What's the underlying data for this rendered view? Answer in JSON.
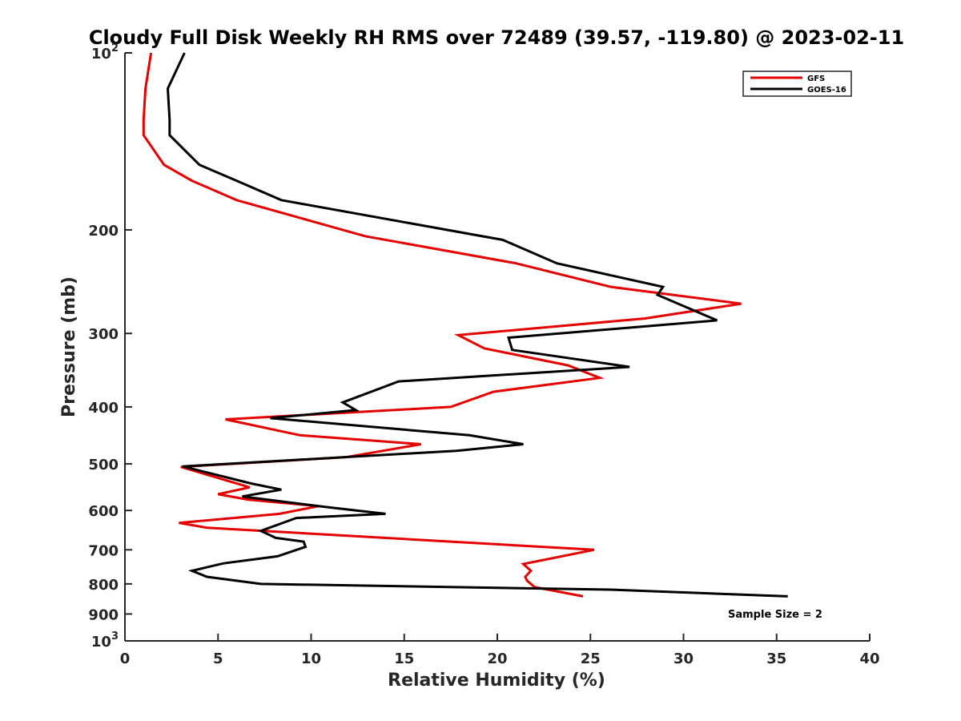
{
  "chart_data": {
    "type": "line",
    "title": "Cloudy Full Disk Weekly RH RMS over 72489 (39.57, -119.80) @ 2023-02-11",
    "xlabel": "Relative Humidity (%)",
    "ylabel": "Pressure (mb)",
    "xlim": [
      0,
      40
    ],
    "ylim": [
      100,
      1000
    ],
    "yscale": "log",
    "y_reversed": true,
    "grid": false,
    "legend_position": "top-right",
    "x_ticks": [
      {
        "value": 0,
        "label": "0"
      },
      {
        "value": 5,
        "label": "5"
      },
      {
        "value": 10,
        "label": "10"
      },
      {
        "value": 15,
        "label": "15"
      },
      {
        "value": 20,
        "label": "20"
      },
      {
        "value": 25,
        "label": "25"
      },
      {
        "value": 30,
        "label": "30"
      },
      {
        "value": 35,
        "label": "35"
      },
      {
        "value": 40,
        "label": "40"
      }
    ],
    "y_ticks": [
      {
        "value": 100,
        "base": "10",
        "exp": "2"
      },
      {
        "value": 200,
        "label": "200"
      },
      {
        "value": 300,
        "label": "300"
      },
      {
        "value": 400,
        "label": "400"
      },
      {
        "value": 500,
        "label": "500"
      },
      {
        "value": 600,
        "label": "600"
      },
      {
        "value": 700,
        "label": "700"
      },
      {
        "value": 800,
        "label": "800"
      },
      {
        "value": 900,
        "label": "900"
      },
      {
        "value": 1000,
        "base": "10",
        "exp": "3"
      }
    ],
    "series": [
      {
        "name": "GFS",
        "color": "#e60000",
        "points": [
          [
            1.4,
            100
          ],
          [
            1.1,
            115
          ],
          [
            1.0,
            130
          ],
          [
            1.0,
            138
          ],
          [
            2.1,
            155
          ],
          [
            3.6,
            165
          ],
          [
            6.0,
            178
          ],
          [
            12.9,
            205
          ],
          [
            21.0,
            228
          ],
          [
            26.1,
            250
          ],
          [
            33.1,
            267
          ],
          [
            27.9,
            283
          ],
          [
            17.9,
            302
          ],
          [
            19.3,
            318
          ],
          [
            23.8,
            340
          ],
          [
            25.5,
            357
          ],
          [
            19.8,
            377
          ],
          [
            17.5,
            400
          ],
          [
            5.4,
            420
          ],
          [
            9.4,
            447
          ],
          [
            15.9,
            463
          ],
          [
            11.9,
            487
          ],
          [
            3.0,
            506
          ],
          [
            6.7,
            548
          ],
          [
            5.0,
            563
          ],
          [
            6.6,
            575
          ],
          [
            10.4,
            590
          ],
          [
            8.3,
            608
          ],
          [
            2.9,
            630
          ],
          [
            4.4,
            642
          ],
          [
            25.2,
            700
          ],
          [
            21.4,
            740
          ],
          [
            21.8,
            760
          ],
          [
            21.5,
            778
          ],
          [
            21.6,
            790
          ],
          [
            22.0,
            810
          ],
          [
            24.6,
            840
          ]
        ]
      },
      {
        "name": "GOES-16",
        "color": "#000000",
        "points": [
          [
            3.2,
            100
          ],
          [
            2.3,
            115
          ],
          [
            2.4,
            130
          ],
          [
            2.4,
            138
          ],
          [
            4.0,
            155
          ],
          [
            6.0,
            165
          ],
          [
            8.4,
            178
          ],
          [
            20.3,
            208
          ],
          [
            23.2,
            228
          ],
          [
            28.9,
            250
          ],
          [
            28.6,
            258
          ],
          [
            31.8,
            285
          ],
          [
            20.6,
            305
          ],
          [
            20.8,
            320
          ],
          [
            27.1,
            342
          ],
          [
            14.7,
            362
          ],
          [
            11.7,
            393
          ],
          [
            12.4,
            405
          ],
          [
            7.8,
            418
          ],
          [
            18.5,
            447
          ],
          [
            21.4,
            463
          ],
          [
            17.8,
            475
          ],
          [
            3.1,
            505
          ],
          [
            6.8,
            540
          ],
          [
            8.4,
            553
          ],
          [
            6.3,
            568
          ],
          [
            10.8,
            592
          ],
          [
            14.0,
            608
          ],
          [
            9.2,
            618
          ],
          [
            7.3,
            650
          ],
          [
            8.1,
            668
          ],
          [
            9.6,
            678
          ],
          [
            9.7,
            692
          ],
          [
            8.2,
            718
          ],
          [
            5.3,
            738
          ],
          [
            3.6,
            760
          ],
          [
            4.4,
            778
          ],
          [
            7.3,
            800
          ],
          [
            26.0,
            818
          ],
          [
            35.6,
            840
          ]
        ]
      }
    ],
    "annotation": "Sample Size = 2"
  }
}
